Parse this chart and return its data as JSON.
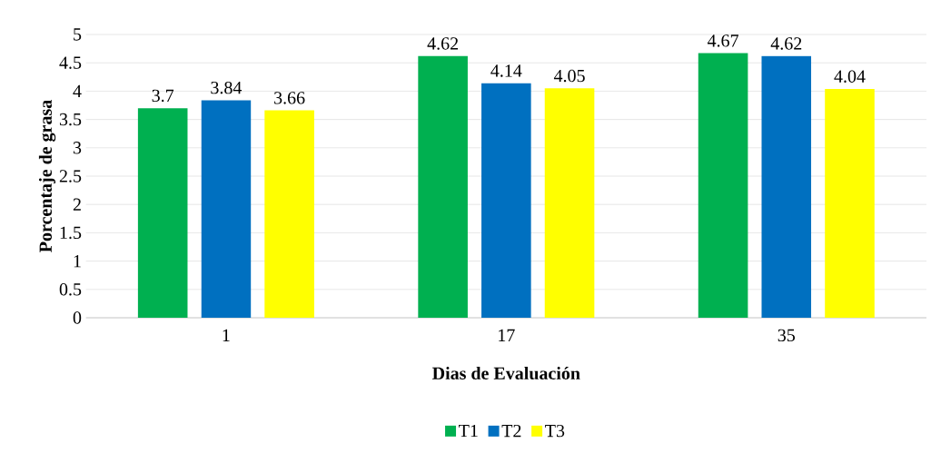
{
  "chart_data": {
    "type": "bar",
    "xlabel": "Dias de Evaluación",
    "ylabel": "Porcentaje de grasa",
    "categories": [
      "1",
      "17",
      "35"
    ],
    "series": [
      {
        "name": "T1",
        "color": "#00b050",
        "values": [
          3.7,
          4.62,
          4.67
        ]
      },
      {
        "name": "T2",
        "color": "#0070c0",
        "values": [
          3.84,
          4.14,
          4.62
        ]
      },
      {
        "name": "T3",
        "color": "#ffff00",
        "values": [
          3.66,
          4.05,
          4.04
        ]
      }
    ],
    "ylim": [
      0,
      5
    ],
    "yticks": [
      0,
      0.5,
      1,
      1.5,
      2,
      2.5,
      3,
      3.5,
      4,
      4.5,
      5
    ],
    "grid": "y",
    "legend": "bottom",
    "data_labels": true
  }
}
